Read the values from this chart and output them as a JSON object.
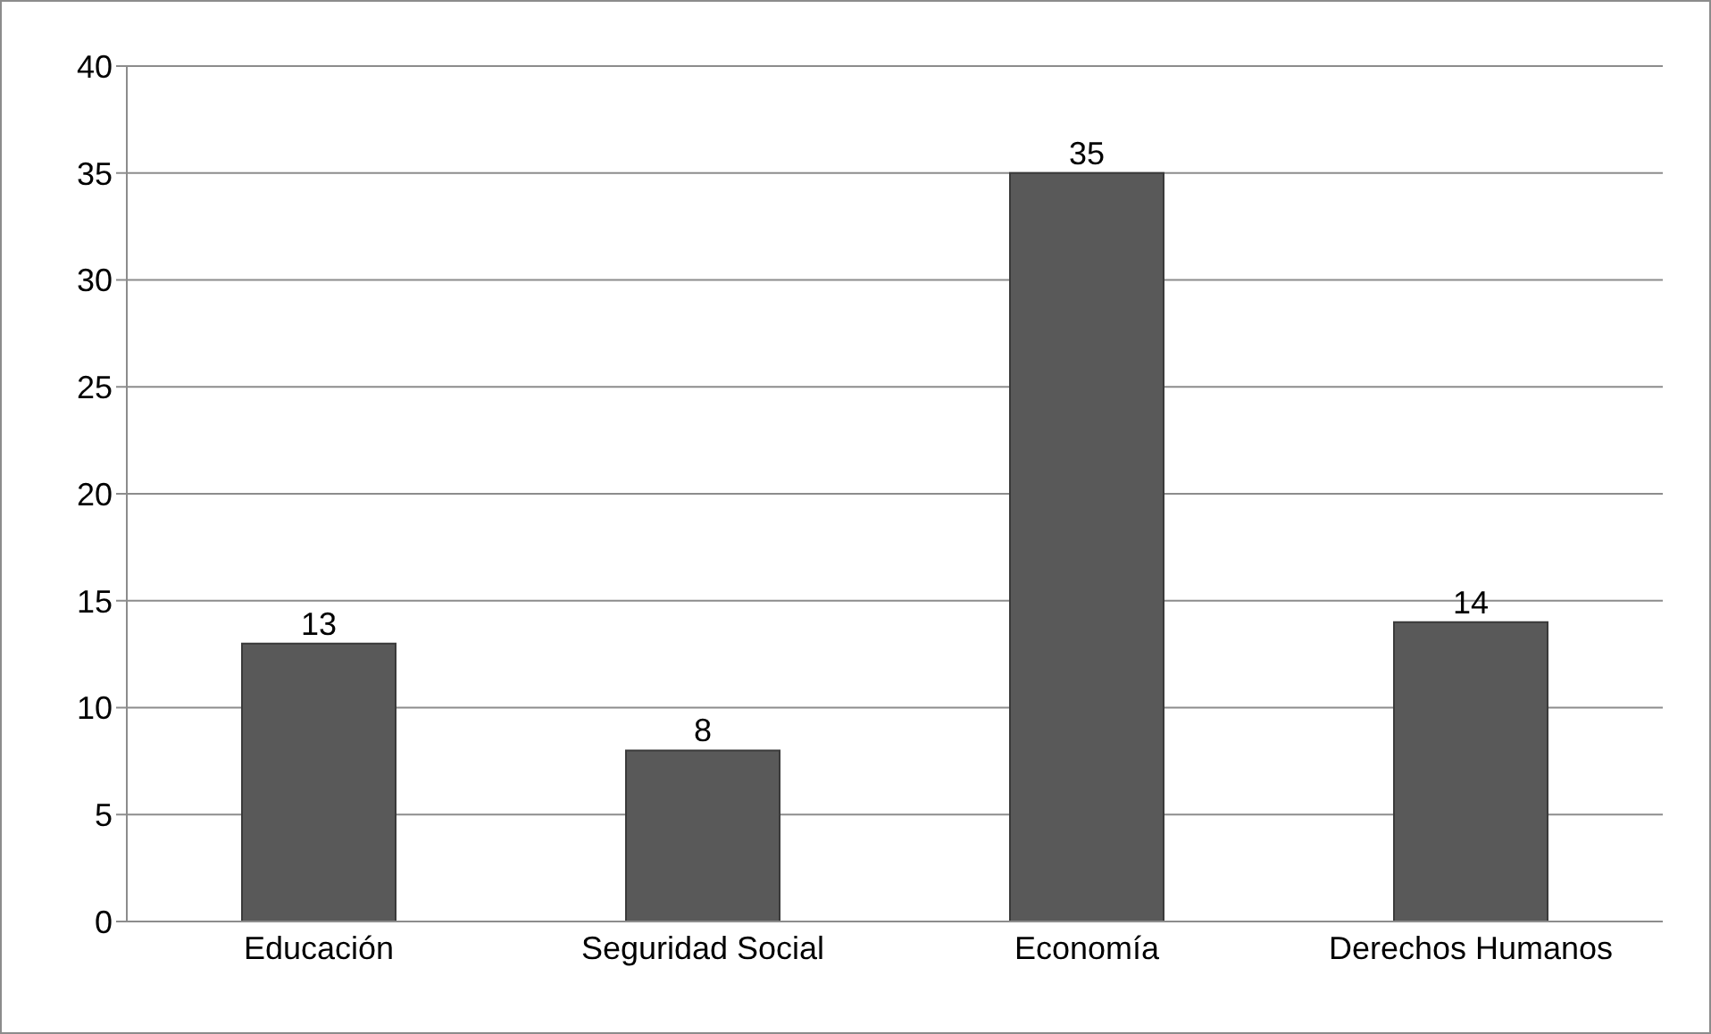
{
  "chart_data": {
    "type": "bar",
    "categories": [
      "Educación",
      "Seguridad Social",
      "Economía",
      "Derechos Humanos"
    ],
    "values": [
      13,
      8,
      35,
      14
    ],
    "color": "#595959",
    "ylim": [
      0,
      40
    ],
    "yticks": [
      0,
      5,
      10,
      15,
      20,
      25,
      30,
      35,
      40
    ],
    "grid": "y",
    "data_labels": true
  }
}
